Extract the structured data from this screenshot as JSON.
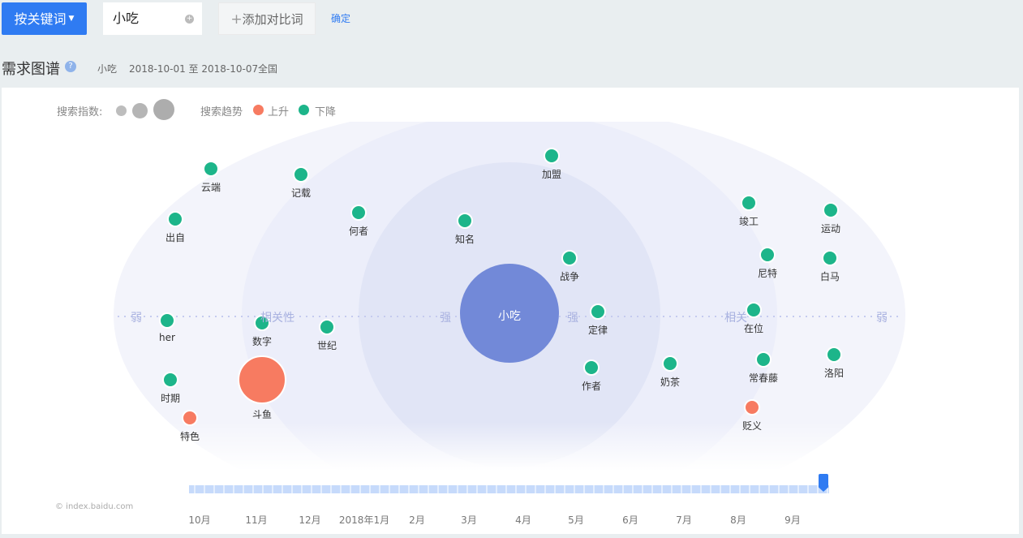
{
  "toolbar": {
    "keyword_mode_label": "按关键词",
    "keyword_value": "小吃",
    "add_compare_label": "添加对比词",
    "confirm_label": "确定"
  },
  "header": {
    "title": "需求图谱",
    "keyword": "小吃",
    "date_range": "2018-10-01 至 2018-10-07",
    "region": "全国"
  },
  "legend": {
    "size_label": "搜索指数:",
    "trend_label": "搜索趋势",
    "rise_label": "上升",
    "fall_label": "下降",
    "rise_color": "#f77b61",
    "fall_color": "#1db58a"
  },
  "graph": {
    "center": "小吃",
    "center_color": "#7289d8",
    "axis_labels": {
      "weak_left": "弱",
      "rel_left": "相关性",
      "strong_left": "强",
      "strong_right": "强",
      "rel_right": "相关",
      "weak_right": "弱"
    },
    "nodes": [
      {
        "label": "加盟",
        "trend": "fall"
      },
      {
        "label": "云端",
        "trend": "fall"
      },
      {
        "label": "记载",
        "trend": "fall"
      },
      {
        "label": "出自",
        "trend": "fall"
      },
      {
        "label": "何者",
        "trend": "fall"
      },
      {
        "label": "知名",
        "trend": "fall"
      },
      {
        "label": "竣工",
        "trend": "fall"
      },
      {
        "label": "运动",
        "trend": "fall"
      },
      {
        "label": "战争",
        "trend": "fall"
      },
      {
        "label": "尼特",
        "trend": "fall"
      },
      {
        "label": "白马",
        "trend": "fall"
      },
      {
        "label": "her",
        "trend": "fall"
      },
      {
        "label": "数字",
        "trend": "fall"
      },
      {
        "label": "世纪",
        "trend": "fall"
      },
      {
        "label": "定律",
        "trend": "fall"
      },
      {
        "label": "在位",
        "trend": "fall"
      },
      {
        "label": "时期",
        "trend": "fall"
      },
      {
        "label": "斗鱼",
        "trend": "rise"
      },
      {
        "label": "作者",
        "trend": "fall"
      },
      {
        "label": "奶茶",
        "trend": "fall"
      },
      {
        "label": "常春藤",
        "trend": "fall"
      },
      {
        "label": "洛阳",
        "trend": "fall"
      },
      {
        "label": "特色",
        "trend": "rise"
      },
      {
        "label": "贬义",
        "trend": "rise"
      }
    ]
  },
  "timeline": {
    "months": [
      "10月",
      "11月",
      "12月",
      "2018年1月",
      "2月",
      "3月",
      "4月",
      "5月",
      "6月",
      "7月",
      "8月",
      "9月"
    ],
    "watermark": "© index.baidu.com"
  }
}
